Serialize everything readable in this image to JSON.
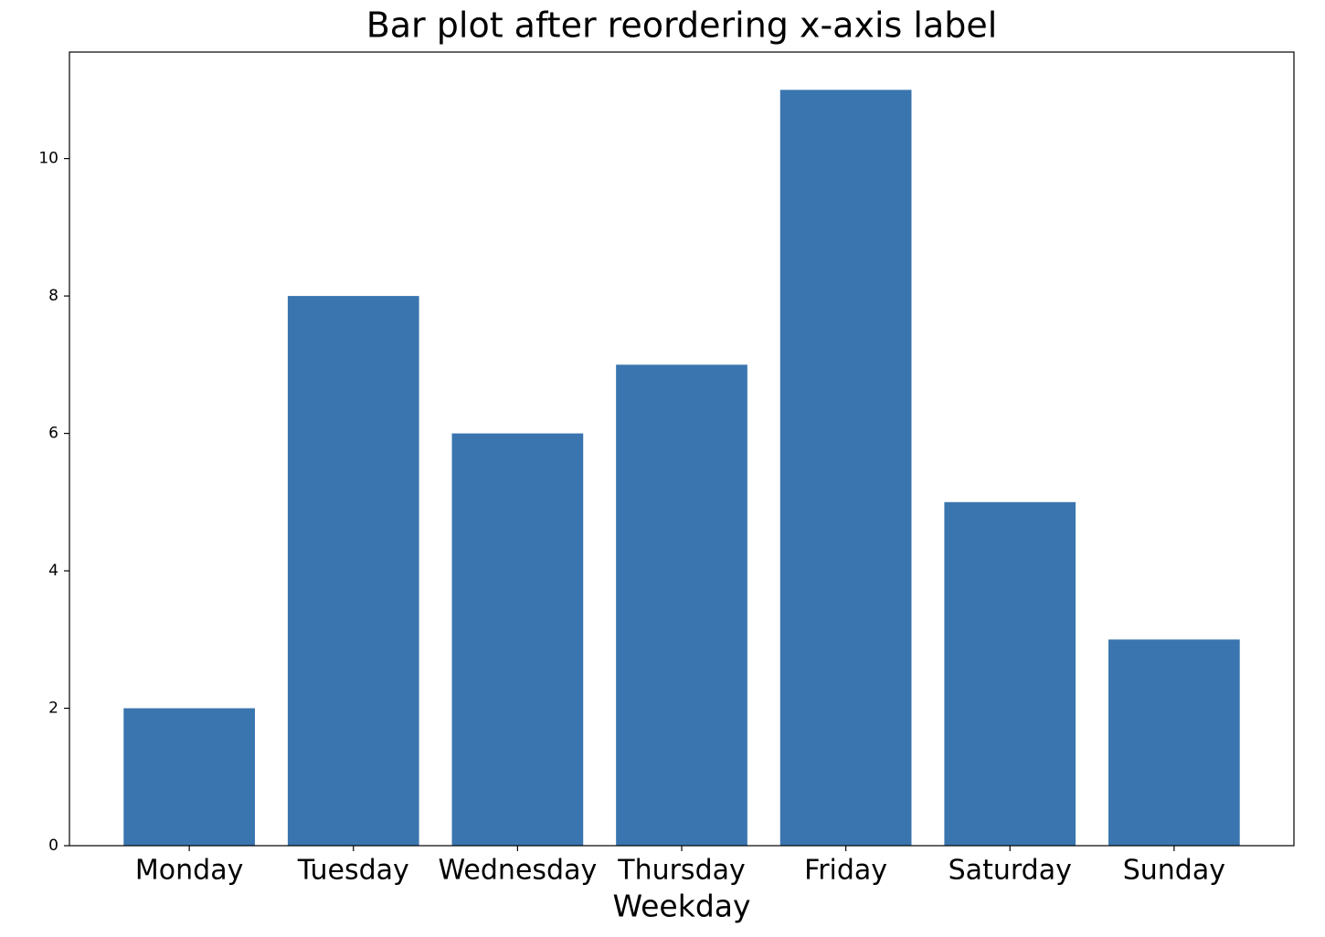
{
  "chart_data": {
    "type": "bar",
    "title": "Bar plot after reordering x-axis label",
    "x_label": "Weekday",
    "categories": [
      "Monday",
      "Tuesday",
      "Wednesday",
      "Thursday",
      "Friday",
      "Saturday",
      "Sunday"
    ],
    "values": [
      2,
      8,
      6,
      7,
      11,
      5,
      3
    ],
    "color": "#3a75af",
    "ylim": [
      0,
      11.55
    ],
    "yticks": [
      0,
      2,
      4,
      6,
      8,
      10
    ],
    "grid": false
  }
}
